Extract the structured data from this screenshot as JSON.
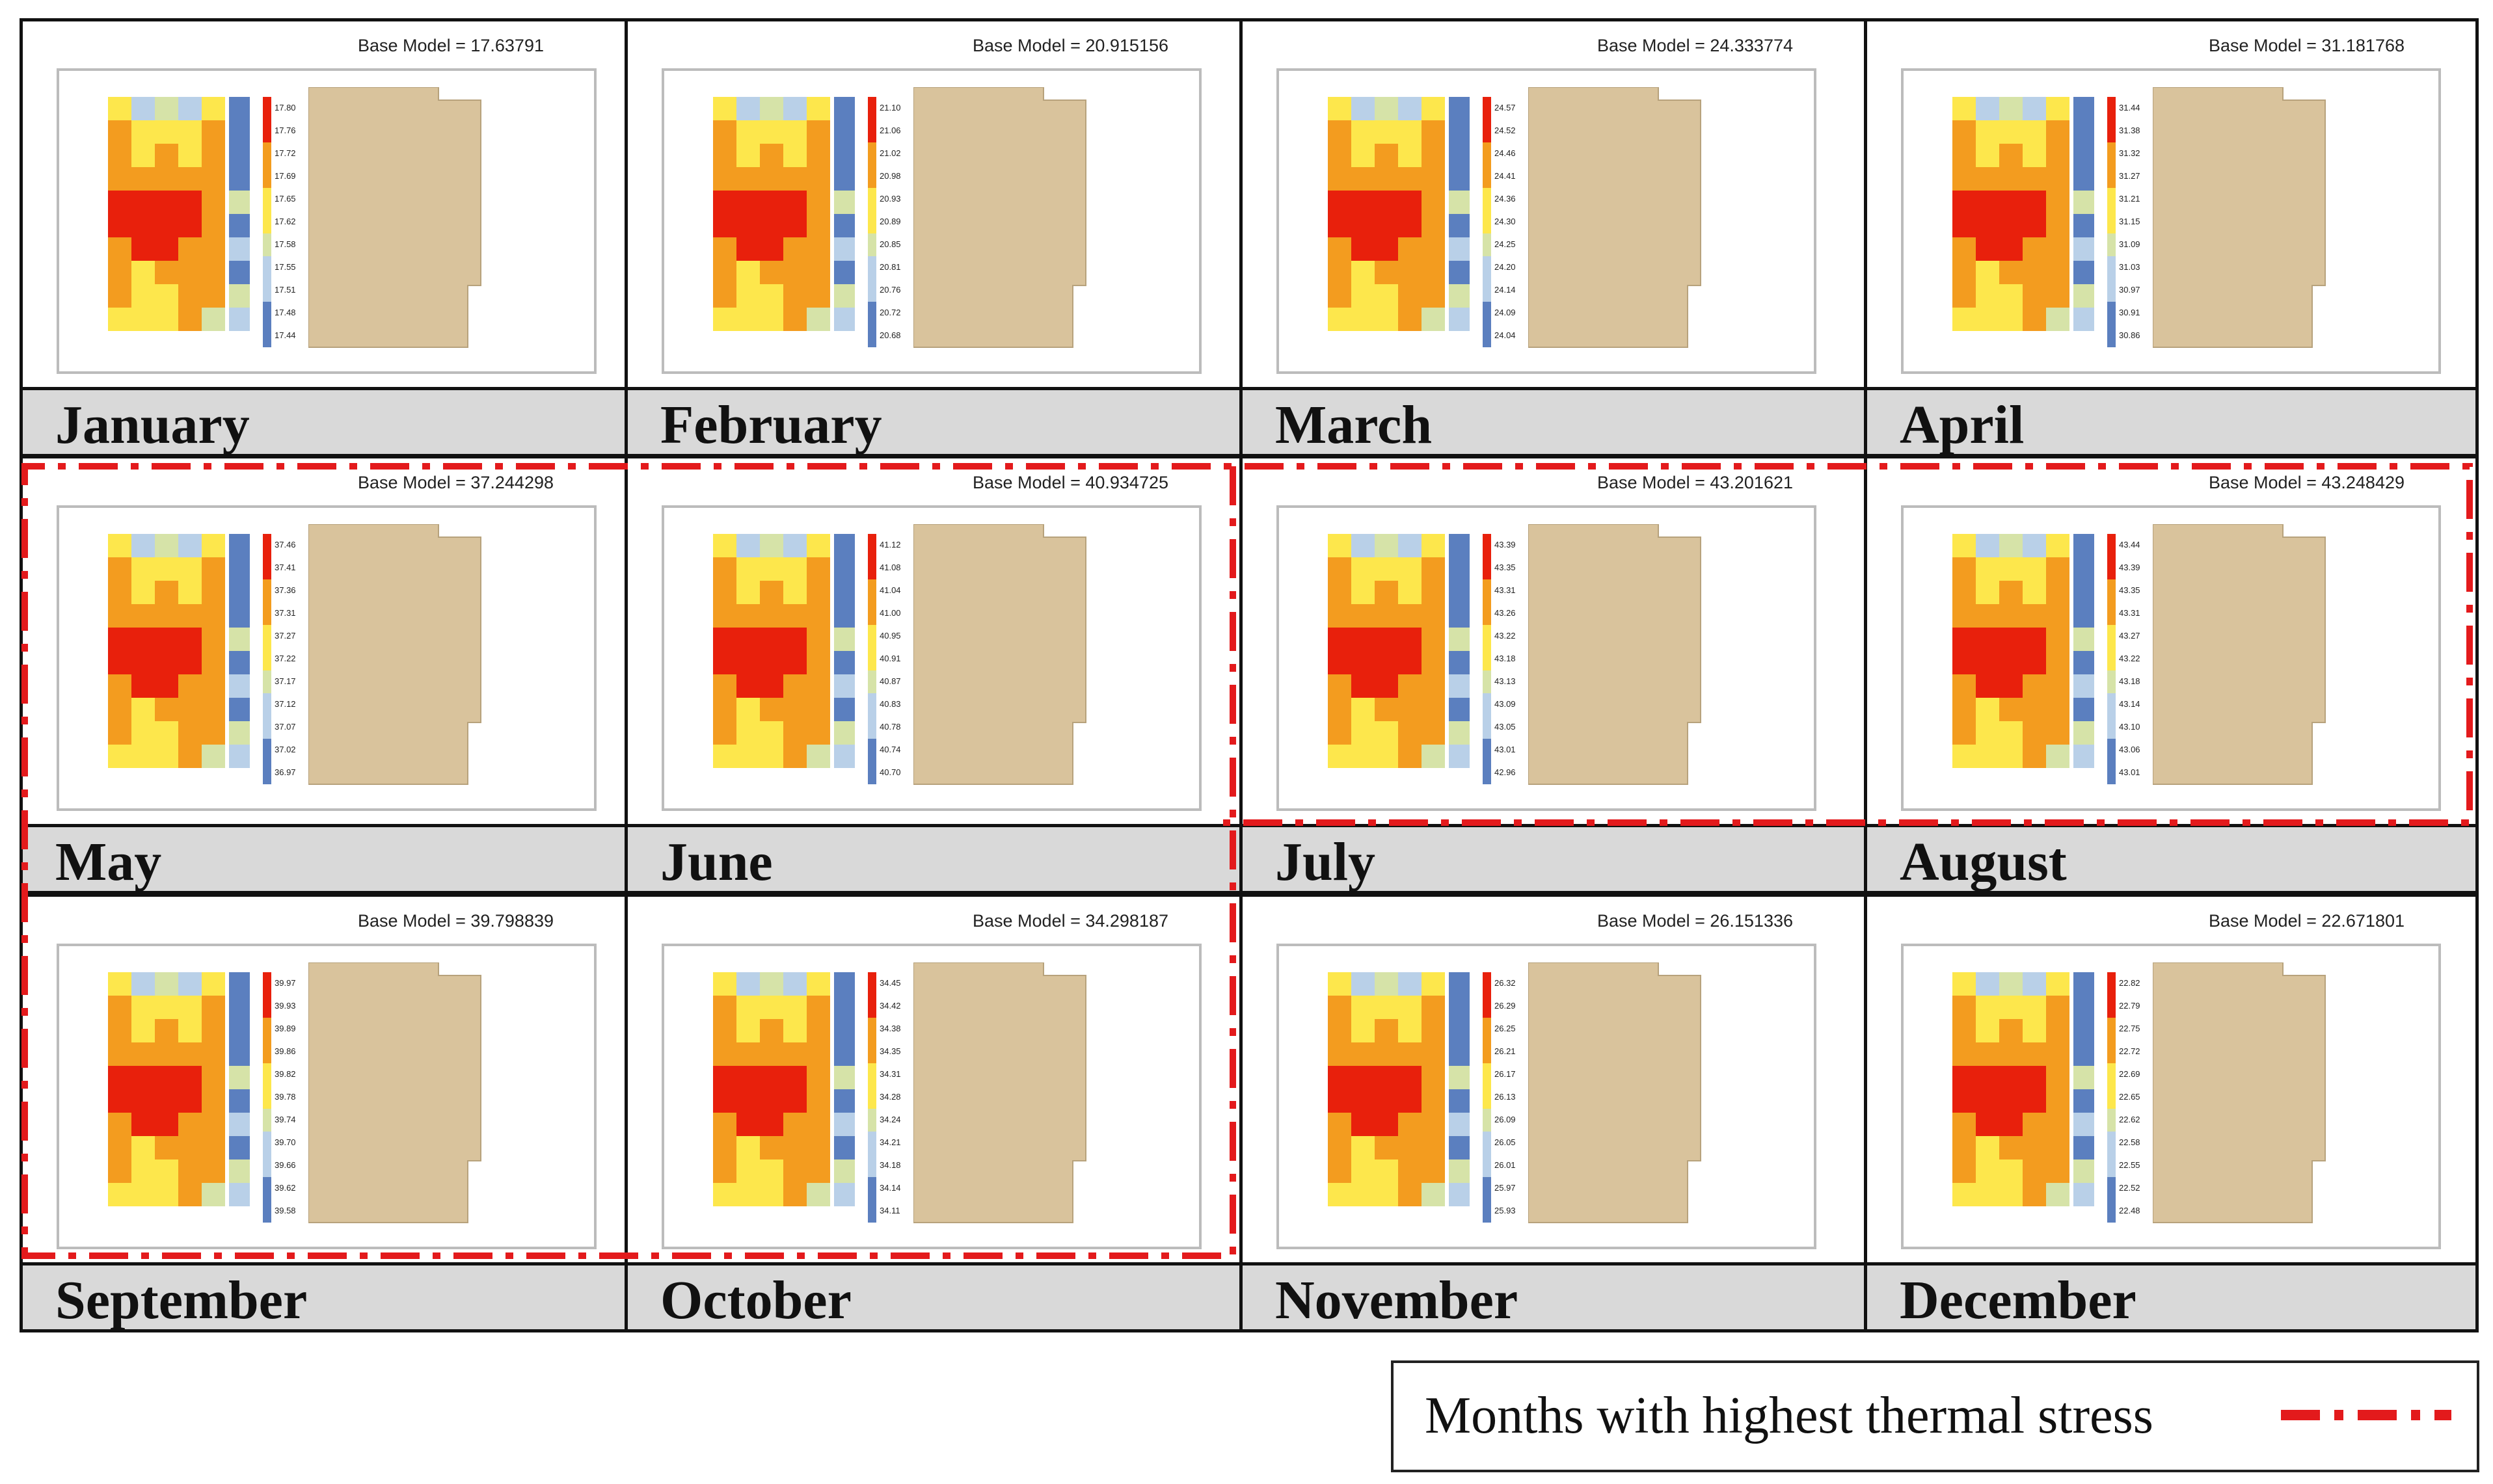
{
  "legend": {
    "label": "Months with highest thermal stress",
    "line_color": "#e31a1c"
  },
  "base_model_label": "Base Model  =",
  "palette": {
    "heat_high": "#e8200c",
    "heat_mid": "#f39c1f",
    "heat_low": "#fde74c",
    "neutral": "#d6e3a8",
    "cool_light": "#b9d0e8",
    "cool_dark": "#5b7fbf",
    "building": "#d9c39c"
  },
  "months": [
    {
      "name": "January",
      "base_value": "17.63791",
      "scale": [
        "17.80",
        "17.76",
        "17.72",
        "17.69",
        "17.65",
        "17.62",
        "17.58",
        "17.55",
        "17.51",
        "17.48",
        "17.44"
      ],
      "highlighted": false
    },
    {
      "name": "February",
      "base_value": "20.915156",
      "scale": [
        "21.10",
        "21.06",
        "21.02",
        "20.98",
        "20.93",
        "20.89",
        "20.85",
        "20.81",
        "20.76",
        "20.72",
        "20.68"
      ],
      "highlighted": false
    },
    {
      "name": "March",
      "base_value": "24.333774",
      "scale": [
        "24.57",
        "24.52",
        "24.46",
        "24.41",
        "24.36",
        "24.30",
        "24.25",
        "24.20",
        "24.14",
        "24.09",
        "24.04"
      ],
      "highlighted": false
    },
    {
      "name": "April",
      "base_value": "31.181768",
      "scale": [
        "31.44",
        "31.38",
        "31.32",
        "31.27",
        "31.21",
        "31.15",
        "31.09",
        "31.03",
        "30.97",
        "30.91",
        "30.86"
      ],
      "highlighted": false
    },
    {
      "name": "May",
      "base_value": "37.244298",
      "scale": [
        "37.46",
        "37.41",
        "37.36",
        "37.31",
        "37.27",
        "37.22",
        "37.17",
        "37.12",
        "37.07",
        "37.02",
        "36.97"
      ],
      "highlighted": true
    },
    {
      "name": "June",
      "base_value": "40.934725",
      "scale": [
        "41.12",
        "41.08",
        "41.04",
        "41.00",
        "40.95",
        "40.91",
        "40.87",
        "40.83",
        "40.78",
        "40.74",
        "40.70"
      ],
      "highlighted": true
    },
    {
      "name": "July",
      "base_value": "43.201621",
      "scale": [
        "43.39",
        "43.35",
        "43.31",
        "43.26",
        "43.22",
        "43.18",
        "43.13",
        "43.09",
        "43.05",
        "43.01",
        "42.96"
      ],
      "highlighted": true
    },
    {
      "name": "August",
      "base_value": "43.248429",
      "scale": [
        "43.44",
        "43.39",
        "43.35",
        "43.31",
        "43.27",
        "43.22",
        "43.18",
        "43.14",
        "43.10",
        "43.06",
        "43.01"
      ],
      "highlighted": true
    },
    {
      "name": "September",
      "base_value": "39.798839",
      "scale": [
        "39.97",
        "39.93",
        "39.89",
        "39.86",
        "39.82",
        "39.78",
        "39.74",
        "39.70",
        "39.66",
        "39.62",
        "39.58"
      ],
      "highlighted": true
    },
    {
      "name": "October",
      "base_value": "34.298187",
      "scale": [
        "34.45",
        "34.42",
        "34.38",
        "34.35",
        "34.31",
        "34.28",
        "34.24",
        "34.21",
        "34.18",
        "34.14",
        "34.11"
      ],
      "highlighted": true
    },
    {
      "name": "November",
      "base_value": "26.151336",
      "scale": [
        "26.32",
        "26.29",
        "26.25",
        "26.21",
        "26.17",
        "26.13",
        "26.09",
        "26.05",
        "26.01",
        "25.97",
        "25.93"
      ],
      "highlighted": false
    },
    {
      "name": "December",
      "base_value": "22.671801",
      "scale": [
        "22.82",
        "22.79",
        "22.75",
        "22.72",
        "22.69",
        "22.65",
        "22.62",
        "22.58",
        "22.55",
        "22.52",
        "22.48"
      ],
      "highlighted": false
    }
  ]
}
